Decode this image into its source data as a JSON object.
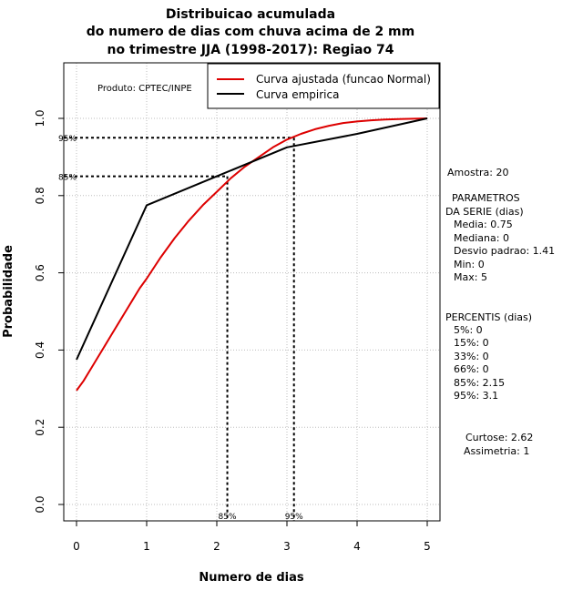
{
  "chart_data": {
    "type": "line",
    "title": [
      "Distribuicao acumulada",
      "do numero de dias com chuva acima de 2 mm",
      "no trimestre JJA (1998-2017): Regiao 74"
    ],
    "xlabel": "Numero de dias",
    "ylabel": "Probabilidade",
    "xlim": [
      -0.2,
      5.2
    ],
    "ylim": [
      -0.04,
      1.15
    ],
    "x_ticks": [
      0,
      1,
      2,
      3,
      4,
      5
    ],
    "x_tick_labels": [
      "0",
      "1",
      "2",
      "3",
      "4",
      "5"
    ],
    "y_ticks": [
      0.0,
      0.2,
      0.4,
      0.6,
      0.8,
      1.0
    ],
    "y_tick_labels": [
      "0.0",
      "0.2",
      "0.4",
      "0.6",
      "0.8",
      "1.0"
    ],
    "grid": true,
    "legend": "top-right",
    "series": [
      {
        "name": "Curva ajustada (funcao Normal)",
        "color": "#dd0000",
        "x": [
          0,
          0.1,
          0.2,
          0.3,
          0.4,
          0.5,
          0.6,
          0.7,
          0.8,
          0.9,
          1.0,
          1.2,
          1.4,
          1.6,
          1.8,
          2.0,
          2.2,
          2.4,
          2.6,
          2.8,
          3.0,
          3.2,
          3.4,
          3.6,
          3.8,
          4.0,
          4.2,
          4.4,
          4.6,
          4.8,
          5.0
        ],
        "y": [
          0.295,
          0.32,
          0.35,
          0.38,
          0.41,
          0.44,
          0.47,
          0.5,
          0.53,
          0.56,
          0.585,
          0.64,
          0.69,
          0.735,
          0.775,
          0.81,
          0.845,
          0.875,
          0.9,
          0.925,
          0.945,
          0.96,
          0.972,
          0.981,
          0.988,
          0.992,
          0.995,
          0.997,
          0.998,
          0.999,
          1.0
        ]
      },
      {
        "name": "Curva empirica",
        "color": "#000000",
        "x": [
          0,
          1,
          2,
          3,
          4,
          5
        ],
        "y": [
          0.375,
          0.775,
          0.85,
          0.925,
          0.96,
          1.0
        ]
      }
    ],
    "percentile_markers": [
      {
        "label": "95%",
        "prob": 0.95,
        "x": 3.1
      },
      {
        "label": "85%",
        "prob": 0.85,
        "x": 2.15
      }
    ],
    "annotations": {
      "produto": "Produto: CPTEC/INPE"
    }
  },
  "side_panel": {
    "amostra": "Amostra: 20",
    "params_title_1": "PARAMETROS",
    "params_title_2": "DA SERIE (dias)",
    "media": "Media: 0.75",
    "mediana": "Mediana: 0",
    "desvio": "Desvio padrao: 1.41",
    "min": "Min: 0",
    "max": "Max: 5",
    "perc_title": "PERCENTIS (dias)",
    "p5": "5%: 0",
    "p15": "15%: 0",
    "p33": "33%: 0",
    "p66": "66%: 0",
    "p85": "85%: 2.15",
    "p95": "95%: 3.1",
    "curtose": "Curtose: 2.62",
    "assimetria": "Assimetria: 1"
  }
}
